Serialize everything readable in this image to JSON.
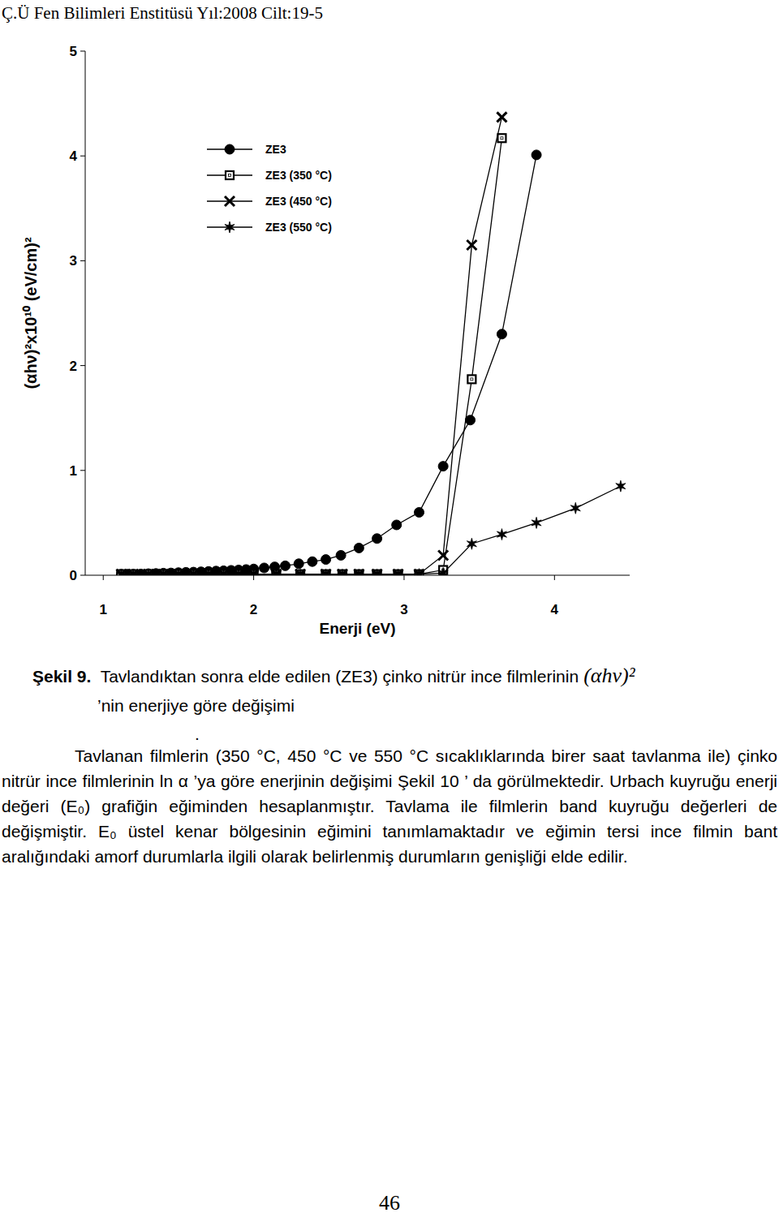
{
  "header": "Ç.Ü Fen Bilimleri Enstitüsü Yıl:2008 Cilt:19-5",
  "chart_data": {
    "type": "scatter",
    "x_label": "Enerji (eV)",
    "y_label": "(αhν)²x10¹⁰ (eV/cm)²",
    "xlim": [
      0.88,
      4.5
    ],
    "xticks": [
      1,
      2,
      3,
      4
    ],
    "ylim": [
      0,
      5
    ],
    "yticks": [
      0,
      1,
      2,
      3,
      4,
      5
    ],
    "grid": false,
    "legend": "upper left",
    "series": [
      {
        "name": "ZE3",
        "color": "#000000",
        "marker": "circle",
        "line_style": "solid",
        "x": [
          1.12,
          1.16,
          1.2,
          1.25,
          1.3,
          1.35,
          1.4,
          1.45,
          1.5,
          1.55,
          1.6,
          1.65,
          1.7,
          1.75,
          1.8,
          1.85,
          1.9,
          1.95,
          2.0,
          2.07,
          2.14,
          2.21,
          2.3,
          2.39,
          2.48,
          2.58,
          2.7,
          2.82,
          2.95,
          3.1,
          3.26,
          3.44,
          3.65,
          3.88
        ],
        "values": [
          0.01,
          0.01,
          0.01,
          0.012,
          0.015,
          0.017,
          0.02,
          0.022,
          0.025,
          0.028,
          0.03,
          0.033,
          0.036,
          0.04,
          0.043,
          0.047,
          0.05,
          0.055,
          0.06,
          0.07,
          0.08,
          0.09,
          0.11,
          0.13,
          0.15,
          0.19,
          0.26,
          0.35,
          0.48,
          0.6,
          1.04,
          1.48,
          2.3,
          4.01
        ]
      },
      {
        "name": "ZE3 (350 °C)",
        "color": "#000000",
        "marker": "square",
        "line_style": "solid",
        "x": [
          1.12,
          1.2,
          1.3,
          1.4,
          1.5,
          1.6,
          1.7,
          1.8,
          1.9,
          2.0,
          2.15,
          2.31,
          2.48,
          2.59,
          2.7,
          2.82,
          2.96,
          3.1,
          3.26,
          3.45,
          3.65
        ],
        "values": [
          0.01,
          0.01,
          0.01,
          0.01,
          0.01,
          0.01,
          0.01,
          0.01,
          0.01,
          0.01,
          0.01,
          0.01,
          0.01,
          0.01,
          0.01,
          0.01,
          0.01,
          0.01,
          0.05,
          1.87,
          4.17
        ]
      },
      {
        "name": "ZE3 (450 °C)",
        "color": "#000000",
        "marker": "cross",
        "line_style": "solid",
        "x": [
          1.12,
          1.2,
          1.3,
          1.4,
          1.5,
          1.6,
          1.7,
          1.8,
          1.9,
          2.0,
          2.15,
          2.31,
          2.48,
          2.59,
          2.7,
          2.82,
          2.96,
          3.1,
          3.26,
          3.45,
          3.65
        ],
        "values": [
          0.01,
          0.01,
          0.01,
          0.01,
          0.01,
          0.01,
          0.01,
          0.01,
          0.01,
          0.01,
          0.01,
          0.01,
          0.01,
          0.01,
          0.01,
          0.01,
          0.01,
          0.01,
          0.19,
          3.15,
          4.37
        ]
      },
      {
        "name": "ZE3 (550 °C)",
        "color": "#000000",
        "marker": "star",
        "line_style": "solid",
        "x": [
          1.12,
          1.2,
          1.3,
          1.4,
          1.5,
          1.6,
          1.7,
          1.8,
          1.9,
          2.0,
          2.15,
          2.31,
          2.48,
          2.59,
          2.7,
          2.82,
          2.96,
          3.1,
          3.26,
          3.45,
          3.65,
          3.88,
          4.14,
          4.44
        ],
        "values": [
          0.005,
          0.005,
          0.005,
          0.005,
          0.005,
          0.005,
          0.005,
          0.005,
          0.005,
          0.005,
          0.005,
          0.005,
          0.005,
          0.005,
          0.005,
          0.005,
          0.005,
          0.01,
          0.02,
          0.3,
          0.39,
          0.5,
          0.64,
          0.85
        ]
      }
    ]
  },
  "caption": {
    "label": "Şekil 9.",
    "text": "Tavlandıktan sonra elde edilen (ZE3) çinko nitrür ince filmlerinin",
    "formula": "(αhν)²",
    "text2": "’nin enerjiye göre değişimi"
  },
  "separator": ".",
  "paragraph": "Tavlanan filmlerin (350 °C, 450 °C ve 550 °C sıcaklıklarında birer saat tavlanma ile) çinko nitrür ince filmlerinin ln α ’ya göre enerjinin değişimi Şekil 10 ’ da görülmektedir. Urbach kuyruğu enerji değeri (E₀) grafiğin eğiminden hesaplanmıştır. Tavlama ile filmlerin band kuyruğu değerleri de değişmiştir. E₀ üstel kenar bölgesinin eğimini tanımlamaktadır ve eğimin tersi ince filmin bant aralığındaki amorf durumlarla ilgili olarak belirlenmiş durumların genişliği elde edilir.",
  "page_number": "46"
}
